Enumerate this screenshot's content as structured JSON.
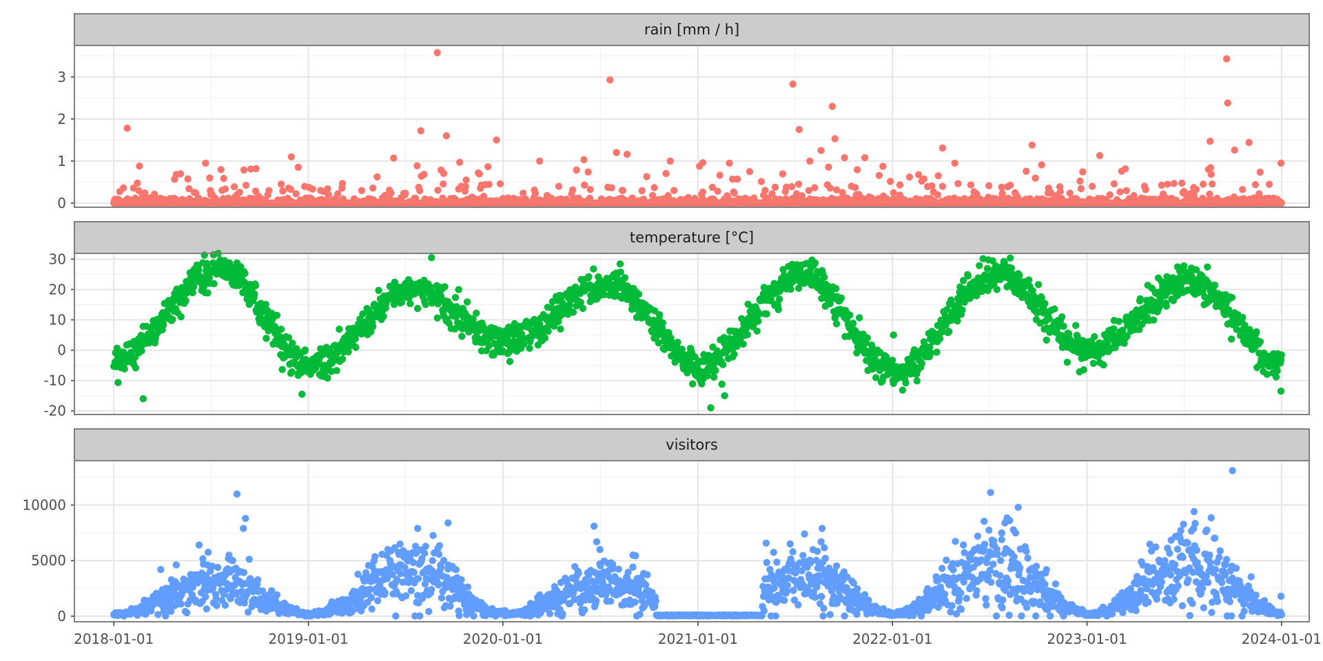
{
  "chart_data": {
    "type": "scatter",
    "layout": "faceted-vertical",
    "theme": "ggplot-bw",
    "grid": true,
    "x_axis": {
      "type": "date",
      "range": [
        "2017-10-19",
        "2024-02-22"
      ],
      "ticks": [
        {
          "value": "2018-01-01",
          "label": "2018-01-01"
        },
        {
          "value": "2019-01-01",
          "label": "2019-01-01"
        },
        {
          "value": "2020-01-01",
          "label": "2020-01-01"
        },
        {
          "value": "2021-01-01",
          "label": "2021-01-01"
        },
        {
          "value": "2022-01-01",
          "label": "2022-01-01"
        },
        {
          "value": "2023-01-01",
          "label": "2023-01-01"
        },
        {
          "value": "2024-01-01",
          "label": "2024-01-01"
        }
      ]
    },
    "x_start": "2018-01-01",
    "x_end": "2024-01-01",
    "facets": [
      {
        "title": "rain [mm / h]",
        "color": "#F8766D",
        "ylim": [
          -0.1,
          3.75
        ],
        "yticks": [
          0,
          1,
          2,
          3
        ],
        "yticklabels": [
          "0",
          "1",
          "2",
          "3"
        ],
        "minor_yticks": [
          0.5,
          1.5,
          2.5,
          3.5
        ],
        "notable_points": [
          {
            "x": "2018-01-26",
            "y": 1.78
          },
          {
            "x": "2018-06-22",
            "y": 0.95
          },
          {
            "x": "2018-11-30",
            "y": 1.1
          },
          {
            "x": "2019-06-10",
            "y": 1.07
          },
          {
            "x": "2019-07-31",
            "y": 1.72
          },
          {
            "x": "2019-08-31",
            "y": 3.58
          },
          {
            "x": "2019-09-17",
            "y": 1.6
          },
          {
            "x": "2019-10-12",
            "y": 0.97
          },
          {
            "x": "2019-12-20",
            "y": 1.5
          },
          {
            "x": "2020-03-10",
            "y": 1.0
          },
          {
            "x": "2020-06-01",
            "y": 1.03
          },
          {
            "x": "2020-07-20",
            "y": 2.93
          },
          {
            "x": "2020-08-01",
            "y": 1.2
          },
          {
            "x": "2020-08-21",
            "y": 1.16
          },
          {
            "x": "2020-11-10",
            "y": 1.0
          },
          {
            "x": "2021-01-10",
            "y": 0.96
          },
          {
            "x": "2021-03-01",
            "y": 0.95
          },
          {
            "x": "2021-06-28",
            "y": 2.83
          },
          {
            "x": "2021-07-10",
            "y": 1.75
          },
          {
            "x": "2021-07-30",
            "y": 1.0
          },
          {
            "x": "2021-08-20",
            "y": 1.25
          },
          {
            "x": "2021-09-10",
            "y": 2.3
          },
          {
            "x": "2021-09-15",
            "y": 1.53
          },
          {
            "x": "2021-10-03",
            "y": 1.08
          },
          {
            "x": "2021-11-10",
            "y": 1.08
          },
          {
            "x": "2022-01-15",
            "y": 0.43
          },
          {
            "x": "2022-04-05",
            "y": 1.31
          },
          {
            "x": "2022-09-20",
            "y": 1.38
          },
          {
            "x": "2023-01-25",
            "y": 1.13
          },
          {
            "x": "2023-08-20",
            "y": 1.47
          },
          {
            "x": "2023-09-20",
            "y": 3.43
          },
          {
            "x": "2023-09-22",
            "y": 2.38
          },
          {
            "x": "2023-10-05",
            "y": 1.26
          },
          {
            "x": "2023-11-01",
            "y": 1.44
          },
          {
            "x": "2023-12-31",
            "y": 0.95
          }
        ]
      },
      {
        "title": "temperature [°C]",
        "color": "#00BA38",
        "ylim": [
          -21.2,
          31.9
        ],
        "yticks": [
          -20,
          -10,
          0,
          10,
          20,
          30
        ],
        "yticklabels": [
          "-20",
          "-10",
          "0",
          "10",
          "20",
          "30"
        ],
        "minor_yticks": [
          -15,
          -5,
          5,
          15,
          25
        ],
        "seasonal_pattern": {
          "summer_peak_mid_july": [
            27,
            20,
            22,
            25,
            25,
            23
          ],
          "winter_trough_early_jan": [
            -3,
            -5,
            3,
            -5,
            -7,
            0,
            -5
          ],
          "noise_amplitude": 3
        },
        "notable_points": [
          {
            "x": "2018-02-25",
            "y": -16
          },
          {
            "x": "2018-06-25",
            "y": 28.5
          },
          {
            "x": "2019-08-20",
            "y": 30.5
          },
          {
            "x": "2018-12-20",
            "y": -14.5
          },
          {
            "x": "2021-01-25",
            "y": -19
          },
          {
            "x": "2021-02-20",
            "y": -15
          },
          {
            "x": "2022-01-03",
            "y": 5
          },
          {
            "x": "2023-12-31",
            "y": -13.5
          }
        ]
      },
      {
        "title": "visitors",
        "color": "#619CFF",
        "ylim": [
          -500,
          14000
        ],
        "yticks": [
          0,
          5000,
          10000
        ],
        "yticklabels": [
          "0",
          "5000",
          "10000"
        ],
        "minor_yticks": [
          2500,
          7500,
          12500
        ],
        "seasonal_pattern": {
          "summer_peak_typical": [
            3000,
            3800,
            3000,
            3500,
            4500,
            4500
          ],
          "winter_baseline": 200,
          "closed_period": [
            "2020-10-15",
            "2021-05-01"
          ]
        },
        "notable_points": [
          {
            "x": "2018-03-30",
            "y": 4200
          },
          {
            "x": "2018-06-10",
            "y": 6400
          },
          {
            "x": "2018-08-20",
            "y": 11000
          },
          {
            "x": "2018-09-05",
            "y": 8800
          },
          {
            "x": "2018-09-01",
            "y": 7900
          },
          {
            "x": "2019-07-25",
            "y": 7900
          },
          {
            "x": "2019-09-20",
            "y": 8400
          },
          {
            "x": "2019-09-30",
            "y": 4300
          },
          {
            "x": "2020-06-20",
            "y": 8100
          },
          {
            "x": "2020-06-25",
            "y": 6700
          },
          {
            "x": "2020-07-01",
            "y": 6000
          },
          {
            "x": "2020-09-01",
            "y": 5500
          },
          {
            "x": "2021-07-20",
            "y": 7400
          },
          {
            "x": "2021-08-22",
            "y": 7900
          },
          {
            "x": "2021-08-20",
            "y": 6700
          },
          {
            "x": "2022-06-10",
            "y": 7200
          },
          {
            "x": "2022-07-25",
            "y": 7500
          },
          {
            "x": "2022-08-25",
            "y": 9800
          },
          {
            "x": "2022-08-20",
            "y": 7500
          },
          {
            "x": "2023-06-25",
            "y": 7000
          },
          {
            "x": "2023-07-20",
            "y": 7900
          },
          {
            "x": "2023-10-01",
            "y": 13100
          },
          {
            "x": "2023-09-20",
            "y": 5100
          },
          {
            "x": "2023-12-31",
            "y": 1800
          }
        ]
      }
    ]
  }
}
